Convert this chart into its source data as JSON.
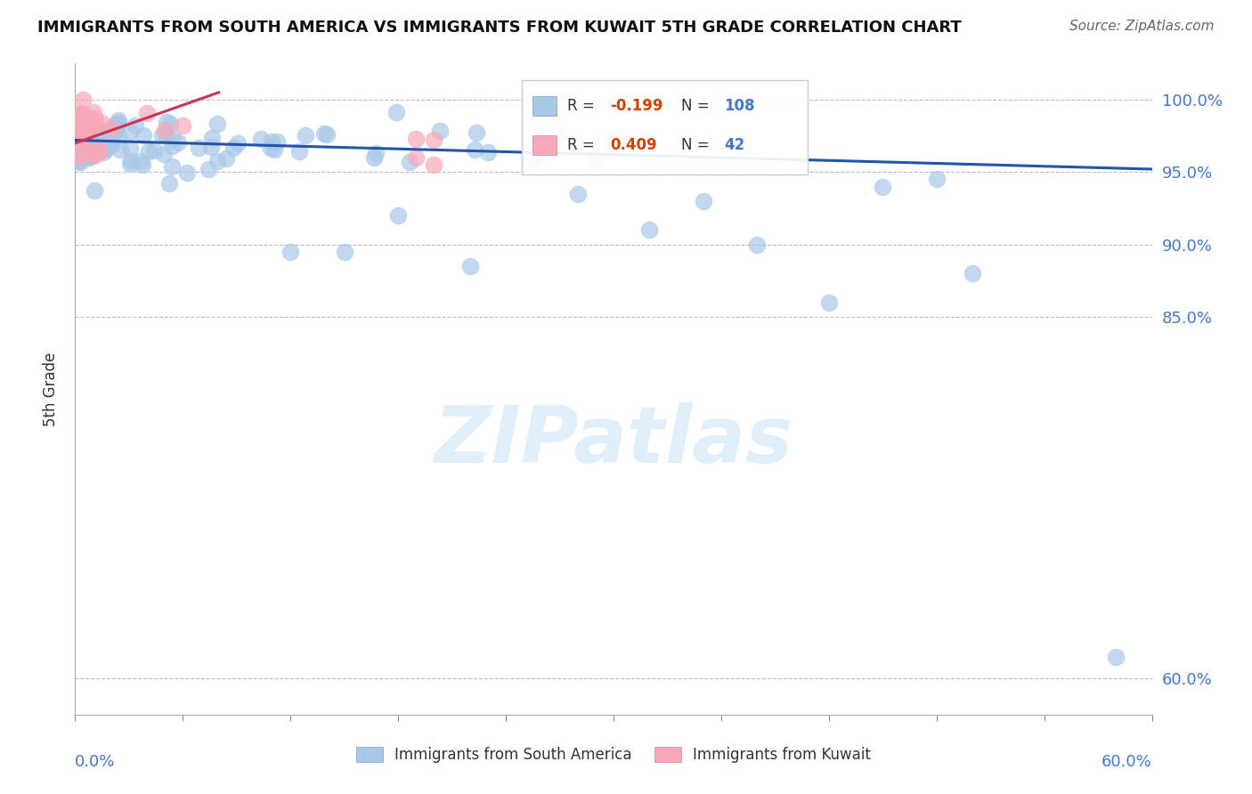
{
  "title": "IMMIGRANTS FROM SOUTH AMERICA VS IMMIGRANTS FROM KUWAIT 5TH GRADE CORRELATION CHART",
  "source": "Source: ZipAtlas.com",
  "ylabel": "5th Grade",
  "ytick_values": [
    0.6,
    0.85,
    0.9,
    0.95,
    1.0
  ],
  "ytick_labels": [
    "60.0%",
    "85.0%",
    "90.0%",
    "95.0%",
    "100.0%"
  ],
  "xmin": 0.0,
  "xmax": 0.6,
  "ymin": 0.575,
  "ymax": 1.025,
  "blue_R": -0.199,
  "blue_N": 108,
  "pink_R": 0.409,
  "pink_N": 42,
  "blue_color": "#a8c8e8",
  "pink_color": "#f8a8b8",
  "blue_line_color": "#2255aa",
  "pink_line_color": "#cc3355",
  "legend_label_blue": "Immigrants from South America",
  "legend_label_pink": "Immigrants from Kuwait",
  "watermark": "ZIPatlas",
  "blue_line_x0": 0.0,
  "blue_line_x1": 0.6,
  "blue_line_y0": 0.972,
  "blue_line_y1": 0.952,
  "pink_line_x0": 0.0,
  "pink_line_x1": 0.08,
  "pink_line_y0": 0.97,
  "pink_line_y1": 1.005
}
